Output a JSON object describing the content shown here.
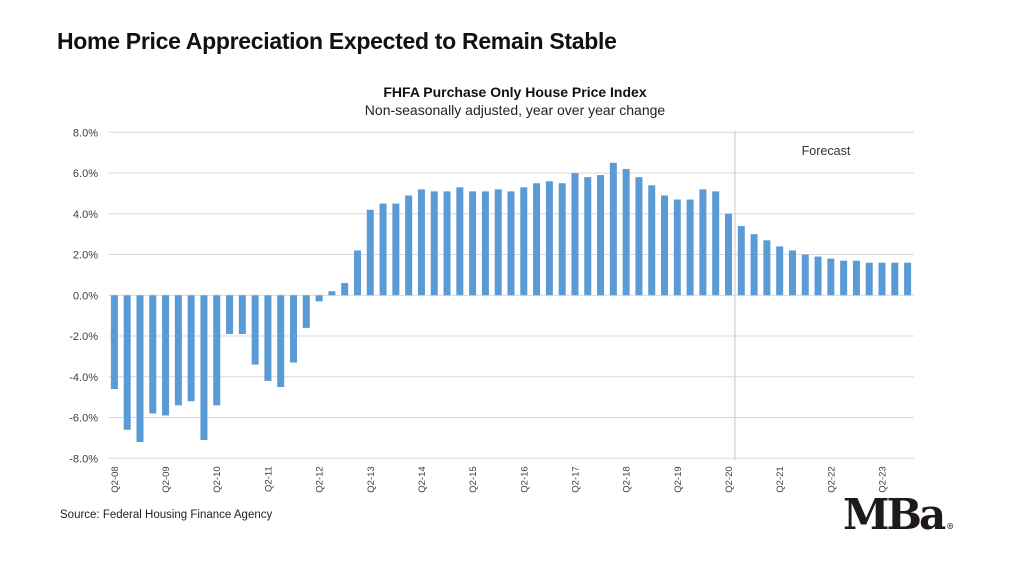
{
  "slide": {
    "title": "Home Price Appreciation Expected to Remain Stable",
    "source": "Source: Federal Housing Finance Agency",
    "logo_text": "MBa",
    "logo_mark": "®"
  },
  "chart_data": {
    "type": "bar",
    "title": "FHFA Purchase Only House Price Index",
    "subtitle": "Non-seasonally adjusted, year over year change",
    "xlabel": "",
    "ylabel": "",
    "ylim": [
      -8,
      8
    ],
    "yticks": [
      8,
      6,
      4,
      2,
      0,
      -2,
      -4,
      -6,
      -8
    ],
    "ytick_labels": [
      "8.0%",
      "6.0%",
      "4.0%",
      "2.0%",
      "0.0%",
      "-2.0%",
      "-4.0%",
      "-6.0%",
      "-8.0%"
    ],
    "grid": true,
    "legend": "none",
    "bar_color": "#5b9bd5",
    "annotation": {
      "text": "Forecast",
      "starts_at": "Q2-20"
    },
    "x_tick_labels": [
      "Q2-08",
      "Q2-09",
      "Q2-10",
      "Q2-11",
      "Q2-12",
      "Q2-13",
      "Q2-14",
      "Q2-15",
      "Q2-16",
      "Q2-17",
      "Q2-18",
      "Q2-19",
      "Q2-20",
      "Q2-21",
      "Q2-22",
      "Q2-23"
    ],
    "categories": [
      "Q2-08",
      "Q3-08",
      "Q4-08",
      "Q1-09",
      "Q2-09",
      "Q3-09",
      "Q4-09",
      "Q1-10",
      "Q2-10",
      "Q3-10",
      "Q4-10",
      "Q1-11",
      "Q2-11",
      "Q3-11",
      "Q4-11",
      "Q1-12",
      "Q2-12",
      "Q3-12",
      "Q4-12",
      "Q1-13",
      "Q2-13",
      "Q3-13",
      "Q4-13",
      "Q1-14",
      "Q2-14",
      "Q3-14",
      "Q4-14",
      "Q1-15",
      "Q2-15",
      "Q3-15",
      "Q4-15",
      "Q1-16",
      "Q2-16",
      "Q3-16",
      "Q4-16",
      "Q1-17",
      "Q2-17",
      "Q3-17",
      "Q4-17",
      "Q1-18",
      "Q2-18",
      "Q3-18",
      "Q4-18",
      "Q1-19",
      "Q2-19",
      "Q3-19",
      "Q4-19",
      "Q1-20",
      "Q2-20",
      "Q3-20",
      "Q4-20",
      "Q1-21",
      "Q2-21",
      "Q3-21",
      "Q4-21",
      "Q1-22",
      "Q2-22",
      "Q3-22",
      "Q4-22",
      "Q1-23",
      "Q2-23",
      "Q3-23",
      "Q4-23"
    ],
    "values": [
      -4.6,
      -6.6,
      -7.2,
      -5.8,
      -5.9,
      -5.4,
      -5.2,
      -7.1,
      -5.4,
      -1.9,
      -1.9,
      -3.4,
      -4.2,
      -4.5,
      -3.3,
      -1.6,
      -0.3,
      0.2,
      0.6,
      2.2,
      4.2,
      4.5,
      4.5,
      4.9,
      5.2,
      5.1,
      5.1,
      5.3,
      5.1,
      5.1,
      5.2,
      5.1,
      5.3,
      5.5,
      5.6,
      5.5,
      6.0,
      5.8,
      5.9,
      6.5,
      6.2,
      5.8,
      5.4,
      4.9,
      4.7,
      4.7,
      5.2,
      5.1,
      4.0,
      3.4,
      3.0,
      2.7,
      2.4,
      2.2,
      2.0,
      1.9,
      1.8,
      1.7,
      1.7,
      1.6,
      1.6,
      1.6,
      1.6
    ]
  }
}
